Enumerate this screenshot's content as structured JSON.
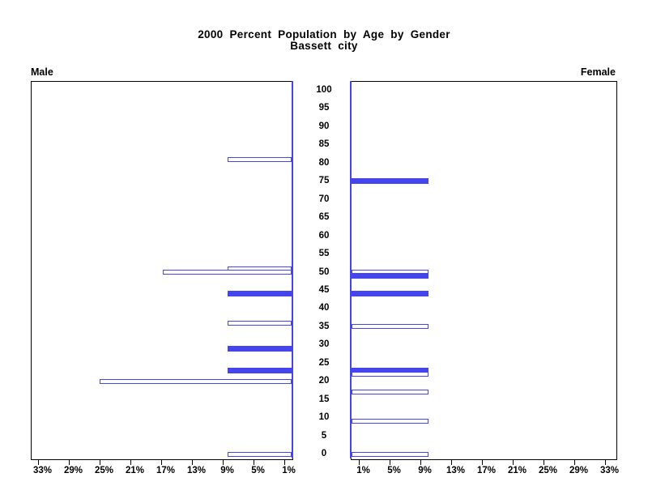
{
  "title": {
    "line1": "2000 Percent Population by Age by Gender",
    "line2": "Bassett city"
  },
  "panels": {
    "left_label": "Male",
    "right_label": "Female"
  },
  "colors": {
    "bar": "#4545ee",
    "bar_hollow_fill": "#ffffff",
    "axis_line": "#000000",
    "baseline": "#4545ee",
    "background": "#ffffff",
    "text": "#000000"
  },
  "age_axis": {
    "tick_labels": [
      "100",
      "95",
      "90",
      "85",
      "80",
      "75",
      "70",
      "65",
      "60",
      "55",
      "50",
      "45",
      "40",
      "35",
      "30",
      "25",
      "20",
      "15",
      "10",
      "5",
      "0"
    ]
  },
  "x_axis": {
    "male_tick_labels": [
      "33%",
      "29%",
      "25%",
      "21%",
      "17%",
      "13%",
      "9%",
      "5%",
      "1%"
    ],
    "female_tick_labels": [
      "1%",
      "5%",
      "9%",
      "13%",
      "17%",
      "21%",
      "25%",
      "29%",
      "33%"
    ]
  },
  "chart_data": {
    "type": "bar",
    "orientation": "horizontal-population-pyramid",
    "title": "2000 Percent Population by Age by Gender",
    "subtitle": "Bassett city",
    "age_axis": {
      "min": 0,
      "max": 100,
      "step": 5
    },
    "percent_axis": {
      "ticks": [
        1,
        5,
        9,
        13,
        17,
        21,
        25,
        29,
        33
      ],
      "unit": "%",
      "lim": [
        0,
        35
      ]
    },
    "legend": "none",
    "grid": false,
    "series": [
      {
        "name": "Male",
        "side": "left",
        "bars": [
          {
            "age": 81,
            "percent": 8.3,
            "filled": false
          },
          {
            "age": 51,
            "percent": 8.3,
            "filled": false
          },
          {
            "age": 50,
            "percent": 16.7,
            "filled": false
          },
          {
            "age": 44,
            "percent": 8.3,
            "filled": true
          },
          {
            "age": 36,
            "percent": 8.3,
            "filled": false
          },
          {
            "age": 29,
            "percent": 8.3,
            "filled": true
          },
          {
            "age": 23,
            "percent": 8.3,
            "filled": true
          },
          {
            "age": 20,
            "percent": 25.0,
            "filled": false
          },
          {
            "age": 0,
            "percent": 8.3,
            "filled": false
          }
        ]
      },
      {
        "name": "Female",
        "side": "right",
        "bars": [
          {
            "age": 75,
            "percent": 10.0,
            "filled": true
          },
          {
            "age": 50,
            "percent": 10.0,
            "filled": false
          },
          {
            "age": 49,
            "percent": 10.0,
            "filled": true
          },
          {
            "age": 44,
            "percent": 10.0,
            "filled": true
          },
          {
            "age": 35,
            "percent": 10.0,
            "filled": false
          },
          {
            "age": 23,
            "percent": 10.0,
            "filled": true
          },
          {
            "age": 22,
            "percent": 10.0,
            "filled": false
          },
          {
            "age": 17,
            "percent": 10.0,
            "filled": false
          },
          {
            "age": 9,
            "percent": 10.0,
            "filled": false
          },
          {
            "age": 0,
            "percent": 10.0,
            "filled": false
          }
        ]
      }
    ]
  }
}
